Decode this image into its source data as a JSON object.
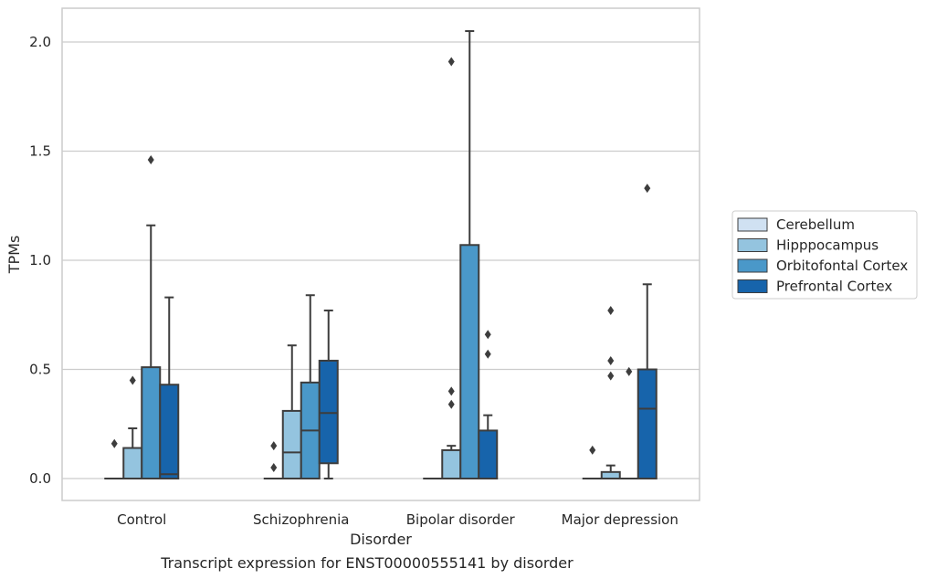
{
  "chart_data": {
    "type": "boxplot",
    "caption": "Transcript expression for ENST00000555141 by disorder",
    "xlabel": "Disorder",
    "ylabel": "TPMs",
    "categories": [
      "Control",
      "Schizophrenia",
      "Bipolar disorder",
      "Major depression"
    ],
    "ylim": [
      -0.1,
      2.15
    ],
    "yticks": [
      "0.0",
      "0.5",
      "1.0",
      "1.5",
      "2.0"
    ],
    "grid": true,
    "legend_position": "right",
    "series": [
      {
        "name": "Cerebellum",
        "color": "#d0e1f2",
        "boxes": [
          {
            "q1": 0.0,
            "median": 0.0,
            "q3": 0.0,
            "whisker_low": 0.0,
            "whisker_high": 0.0,
            "outliers": [
              0.16
            ]
          },
          {
            "q1": 0.0,
            "median": 0.0,
            "q3": 0.0,
            "whisker_low": 0.0,
            "whisker_high": 0.0,
            "outliers": [
              0.05,
              0.15
            ]
          },
          {
            "q1": 0.0,
            "median": 0.0,
            "q3": 0.0,
            "whisker_low": 0.0,
            "whisker_high": 0.0,
            "outliers": []
          },
          {
            "q1": 0.0,
            "median": 0.0,
            "q3": 0.0,
            "whisker_low": 0.0,
            "whisker_high": 0.0,
            "outliers": [
              0.13
            ]
          }
        ]
      },
      {
        "name": "Hipppocampus",
        "color": "#94c4df",
        "boxes": [
          {
            "q1": 0.0,
            "median": 0.0,
            "q3": 0.14,
            "whisker_low": 0.0,
            "whisker_high": 0.23,
            "outliers": [
              0.45
            ]
          },
          {
            "q1": 0.0,
            "median": 0.12,
            "q3": 0.31,
            "whisker_low": 0.0,
            "whisker_high": 0.61,
            "outliers": []
          },
          {
            "q1": 0.0,
            "median": 0.0,
            "q3": 0.13,
            "whisker_low": 0.0,
            "whisker_high": 0.15,
            "outliers": [
              0.34,
              0.4,
              1.91
            ]
          },
          {
            "q1": 0.0,
            "median": 0.0,
            "q3": 0.03,
            "whisker_low": 0.0,
            "whisker_high": 0.06,
            "outliers": [
              0.47,
              0.54,
              0.77
            ]
          }
        ]
      },
      {
        "name": "Orbitofontal Cortex",
        "color": "#4a98c9",
        "boxes": [
          {
            "q1": 0.0,
            "median": 0.0,
            "q3": 0.51,
            "whisker_low": 0.0,
            "whisker_high": 1.16,
            "outliers": [
              1.46
            ]
          },
          {
            "q1": 0.0,
            "median": 0.22,
            "q3": 0.44,
            "whisker_low": 0.0,
            "whisker_high": 0.84,
            "outliers": []
          },
          {
            "q1": 0.0,
            "median": 0.0,
            "q3": 1.07,
            "whisker_low": 0.0,
            "whisker_high": 2.05,
            "outliers": []
          },
          {
            "q1": 0.0,
            "median": 0.0,
            "q3": 0.0,
            "whisker_low": 0.0,
            "whisker_high": 0.0,
            "outliers": [
              0.49
            ]
          }
        ]
      },
      {
        "name": "Prefrontal Cortex",
        "color": "#1764ab",
        "boxes": [
          {
            "q1": 0.0,
            "median": 0.02,
            "q3": 0.43,
            "whisker_low": 0.0,
            "whisker_high": 0.83,
            "outliers": []
          },
          {
            "q1": 0.07,
            "median": 0.3,
            "q3": 0.54,
            "whisker_low": 0.0,
            "whisker_high": 0.77,
            "outliers": []
          },
          {
            "q1": 0.0,
            "median": 0.0,
            "q3": 0.22,
            "whisker_low": 0.0,
            "whisker_high": 0.29,
            "outliers": [
              0.57,
              0.66
            ]
          },
          {
            "q1": 0.0,
            "median": 0.32,
            "q3": 0.5,
            "whisker_low": 0.0,
            "whisker_high": 0.89,
            "outliers": [
              1.33
            ]
          }
        ]
      }
    ]
  }
}
